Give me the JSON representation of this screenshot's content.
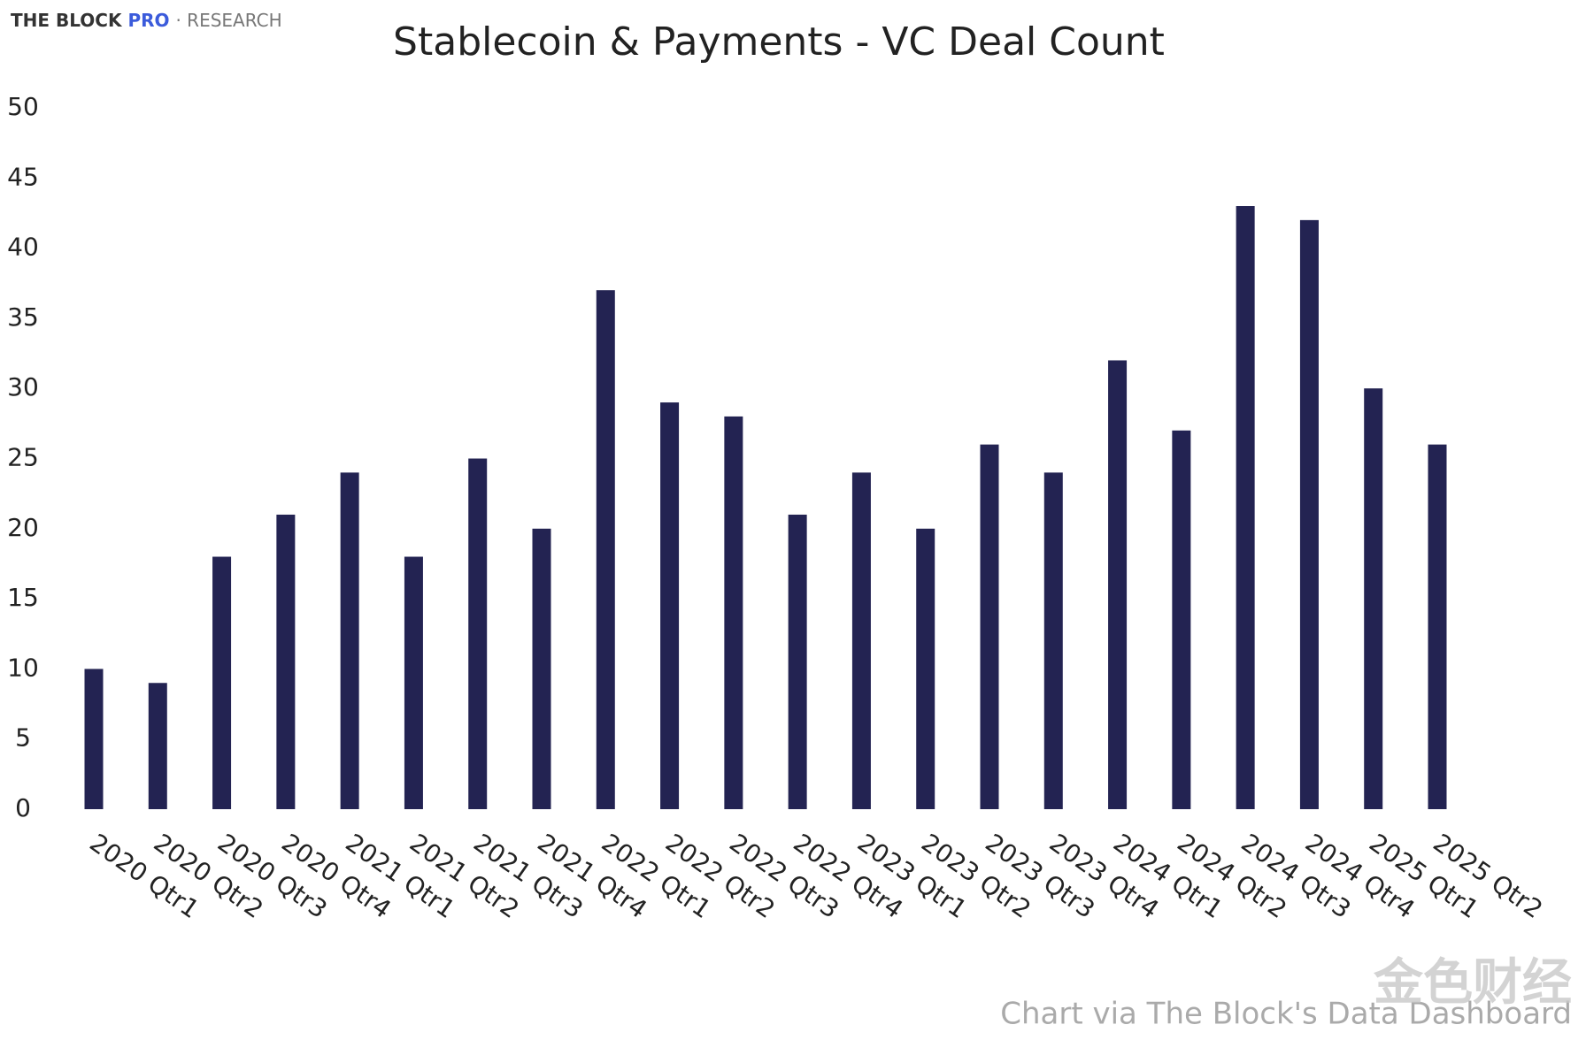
{
  "brand": {
    "name": "THE BLOCK",
    "tier": "PRO",
    "section": "· RESEARCH"
  },
  "chart_data": {
    "type": "bar",
    "title": "Stablecoin & Payments - VC Deal Count",
    "categories": [
      "2020 Qtr1",
      "2020 Qtr2",
      "2020 Qtr3",
      "2020 Qtr4",
      "2021 Qtr1",
      "2021 Qtr2",
      "2021 Qtr3",
      "2021 Qtr4",
      "2022 Qtr1",
      "2022 Qtr2",
      "2022 Qtr3",
      "2022 Qtr4",
      "2023 Qtr1",
      "2023 Qtr2",
      "2023 Qtr3",
      "2023 Qtr4",
      "2024 Qtr1",
      "2024 Qtr2",
      "2024 Qtr3",
      "2024 Qtr4",
      "2025 Qtr1",
      "2025 Qtr2"
    ],
    "values": [
      10,
      9,
      18,
      21,
      24,
      18,
      25,
      20,
      37,
      29,
      28,
      21,
      24,
      20,
      26,
      24,
      32,
      27,
      43,
      42,
      30,
      26
    ],
    "color": "#232352",
    "ylim": [
      0,
      50
    ],
    "yticks": [
      0,
      5,
      10,
      15,
      20,
      25,
      30,
      35,
      40,
      45,
      50
    ],
    "grid": false
  },
  "source": "Chart via The Block's Data Dashboard",
  "watermark": "金色财经"
}
